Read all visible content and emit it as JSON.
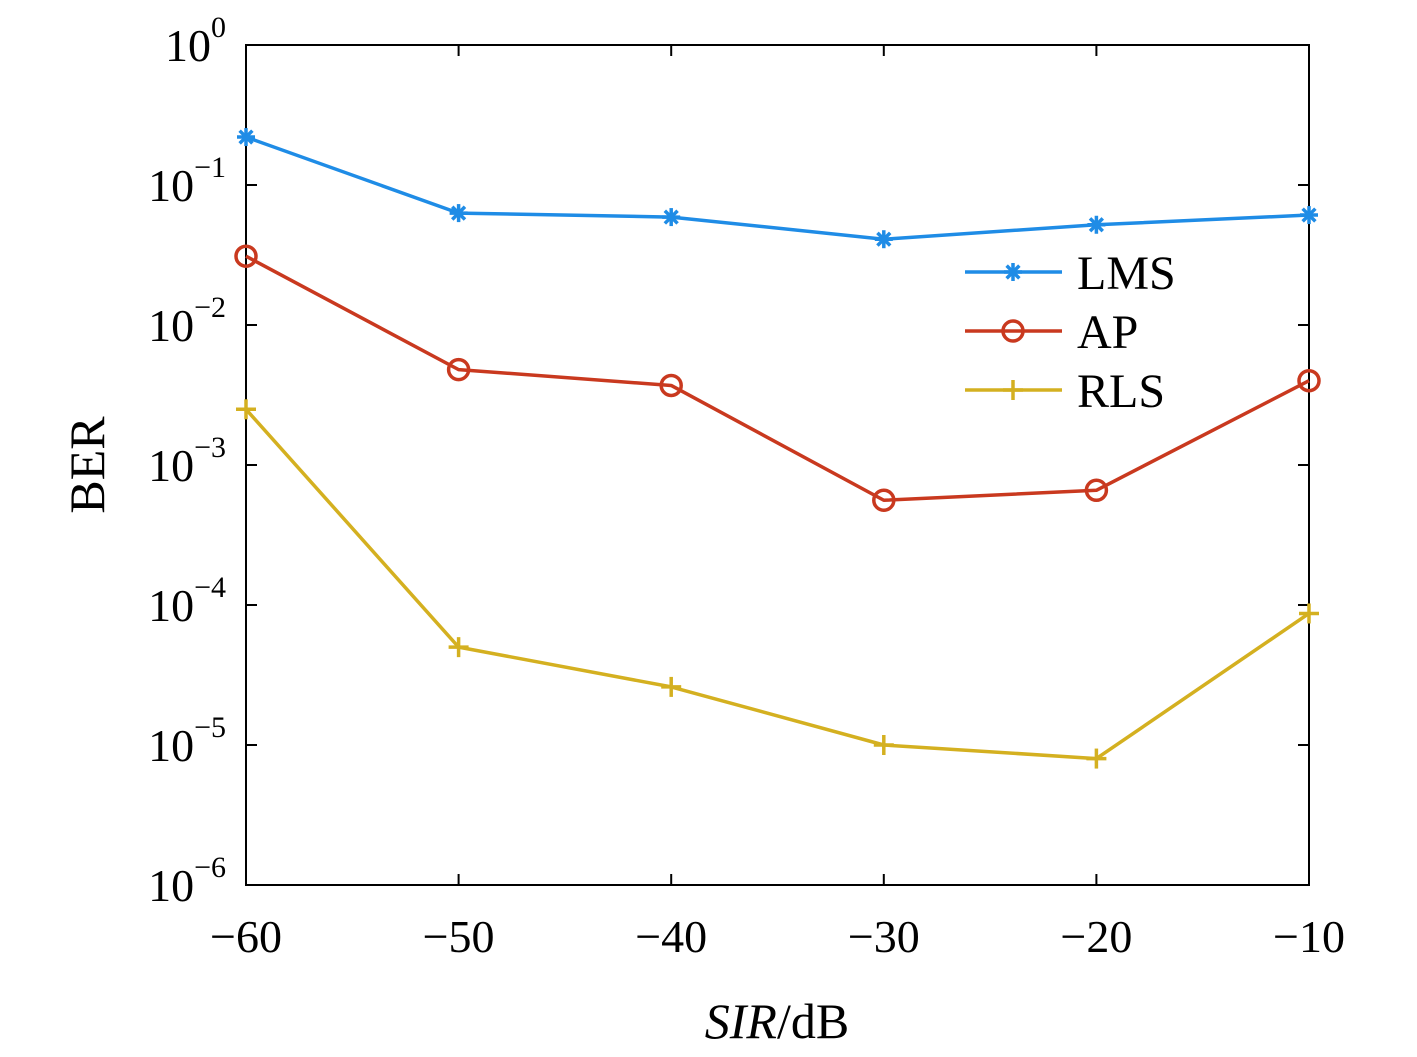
{
  "chart_data": {
    "type": "line",
    "title": "",
    "xlabel": {
      "italic": "SIR",
      "normal": "/dB"
    },
    "ylabel": "BER",
    "yscale": "log",
    "x": [
      -60,
      -50,
      -40,
      -30,
      -20,
      -10
    ],
    "xlim": [
      -60,
      -10
    ],
    "ylim": [
      1e-06,
      1
    ],
    "x_tick_labels": [
      "−60",
      "−50",
      "−40",
      "−30",
      "−20",
      "−10"
    ],
    "y_ticks": [
      {
        "value": 1e-06,
        "base": "10",
        "exp": "−6"
      },
      {
        "value": 1e-05,
        "base": "10",
        "exp": "−5"
      },
      {
        "value": 0.0001,
        "base": "10",
        "exp": "−4"
      },
      {
        "value": 0.001,
        "base": "10",
        "exp": "−3"
      },
      {
        "value": 0.01,
        "base": "10",
        "exp": "−2"
      },
      {
        "value": 0.1,
        "base": "10",
        "exp": "−1"
      },
      {
        "value": 1,
        "base": "10",
        "exp": "0"
      }
    ],
    "grid": false,
    "legend_position": "right",
    "series": [
      {
        "name": "LMS",
        "marker": "asterisk",
        "color": "#1f8ce6",
        "values": [
          0.22,
          0.063,
          0.059,
          0.041,
          0.052,
          0.061
        ]
      },
      {
        "name": "AP",
        "marker": "circle",
        "color": "#c9391f",
        "values": [
          0.031,
          0.0048,
          0.0037,
          0.00056,
          0.00066,
          0.004
        ]
      },
      {
        "name": "RLS",
        "marker": "plus",
        "color": "#d4b020",
        "values": [
          0.0025,
          5e-05,
          2.6e-05,
          1e-05,
          8e-06,
          8.7e-05
        ]
      }
    ]
  }
}
